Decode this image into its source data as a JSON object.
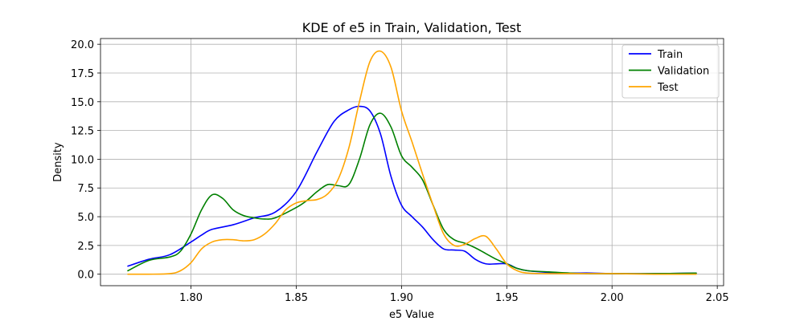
{
  "chart_data": {
    "type": "line",
    "title": "KDE of e5 in Train, Validation, Test",
    "xlabel": "e5 Value",
    "ylabel": "Density",
    "xlim": [
      1.757,
      2.053
    ],
    "ylim": [
      -1.0,
      20.5
    ],
    "xticks": [
      1.8,
      1.85,
      1.9,
      1.95,
      2.0,
      2.05
    ],
    "xtick_labels": [
      "1.80",
      "1.85",
      "1.90",
      "1.95",
      "2.00",
      "2.05"
    ],
    "yticks": [
      0.0,
      2.5,
      5.0,
      7.5,
      10.0,
      12.5,
      15.0,
      17.5,
      20.0
    ],
    "ytick_labels": [
      "0.0",
      "2.5",
      "5.0",
      "7.5",
      "10.0",
      "12.5",
      "15.0",
      "17.5",
      "20.0"
    ],
    "grid": true,
    "legend_position": "top-right",
    "series": [
      {
        "name": "Train",
        "color": "#0000ff",
        "x": [
          1.77,
          1.78,
          1.79,
          1.8,
          1.805,
          1.81,
          1.82,
          1.83,
          1.84,
          1.85,
          1.86,
          1.868,
          1.875,
          1.88,
          1.885,
          1.89,
          1.895,
          1.9,
          1.905,
          1.91,
          1.915,
          1.92,
          1.925,
          1.93,
          1.935,
          1.94,
          1.945,
          1.95,
          1.955,
          1.96,
          1.97,
          1.98,
          1.99,
          2.0,
          2.02,
          2.04
        ],
        "y": [
          0.7,
          1.3,
          1.7,
          2.8,
          3.4,
          3.9,
          4.3,
          4.9,
          5.4,
          7.2,
          10.7,
          13.3,
          14.3,
          14.6,
          14.2,
          12.2,
          8.5,
          6.0,
          5.0,
          4.1,
          3.0,
          2.2,
          2.1,
          2.0,
          1.3,
          0.9,
          0.9,
          0.9,
          0.5,
          0.3,
          0.15,
          0.1,
          0.1,
          0.05,
          0.05,
          0.1
        ]
      },
      {
        "name": "Validation",
        "color": "#008000",
        "x": [
          1.77,
          1.78,
          1.79,
          1.795,
          1.8,
          1.805,
          1.81,
          1.815,
          1.82,
          1.825,
          1.83,
          1.835,
          1.84,
          1.85,
          1.855,
          1.86,
          1.865,
          1.87,
          1.875,
          1.88,
          1.885,
          1.89,
          1.895,
          1.9,
          1.905,
          1.91,
          1.915,
          1.92,
          1.925,
          1.93,
          1.935,
          1.94,
          1.945,
          1.95,
          1.955,
          1.96,
          1.97,
          1.98,
          1.99,
          2.0,
          2.02,
          2.04
        ],
        "y": [
          0.3,
          1.2,
          1.5,
          2.0,
          3.5,
          5.6,
          6.9,
          6.6,
          5.6,
          5.1,
          4.9,
          4.8,
          4.9,
          5.8,
          6.4,
          7.2,
          7.8,
          7.7,
          7.8,
          10.0,
          13.0,
          14.0,
          12.8,
          10.3,
          9.3,
          8.2,
          6.0,
          3.9,
          3.0,
          2.7,
          2.3,
          1.8,
          1.3,
          0.9,
          0.5,
          0.3,
          0.2,
          0.1,
          0.05,
          0.05,
          0.05,
          0.1
        ]
      },
      {
        "name": "Test",
        "color": "#ffa500",
        "x": [
          1.77,
          1.78,
          1.79,
          1.795,
          1.8,
          1.805,
          1.81,
          1.815,
          1.82,
          1.825,
          1.83,
          1.835,
          1.84,
          1.845,
          1.85,
          1.855,
          1.86,
          1.865,
          1.87,
          1.875,
          1.88,
          1.885,
          1.89,
          1.895,
          1.9,
          1.905,
          1.91,
          1.915,
          1.92,
          1.925,
          1.93,
          1.935,
          1.94,
          1.945,
          1.95,
          1.955,
          1.96,
          1.97,
          1.98,
          1.99,
          2.0,
          2.02,
          2.04
        ],
        "y": [
          0.0,
          0.0,
          0.05,
          0.3,
          1.0,
          2.2,
          2.8,
          3.0,
          3.0,
          2.9,
          3.0,
          3.5,
          4.4,
          5.6,
          6.2,
          6.4,
          6.5,
          7.0,
          8.3,
          11.0,
          15.0,
          18.5,
          19.4,
          18.0,
          14.2,
          11.5,
          8.7,
          6.0,
          3.5,
          2.5,
          2.6,
          3.1,
          3.3,
          2.2,
          0.9,
          0.3,
          0.1,
          0.05,
          0.05,
          0.05,
          0.05,
          0.0,
          0.0
        ]
      }
    ]
  }
}
